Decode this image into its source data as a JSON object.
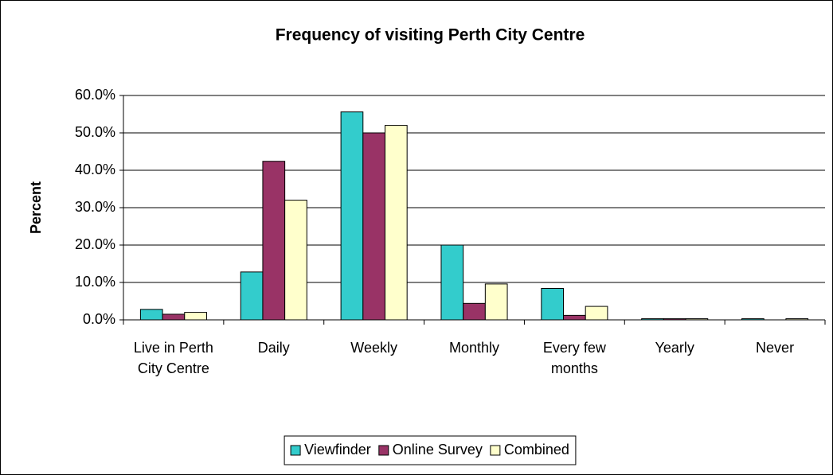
{
  "chart_data": {
    "type": "bar",
    "title": "Frequency of visiting Perth City Centre",
    "y_label": "Percent",
    "categories": [
      "Live in Perth City Centre",
      "Daily",
      "Weekly",
      "Monthly",
      "Every few months",
      "Yearly",
      "Never"
    ],
    "series": [
      {
        "name": "Viewfinder",
        "color": "#33cccc",
        "values": [
          2.8,
          12.8,
          55.6,
          20.0,
          8.4,
          0.3,
          0.3
        ]
      },
      {
        "name": "Online Survey",
        "color": "#993366",
        "values": [
          1.5,
          42.4,
          50.0,
          4.4,
          1.2,
          0.3,
          0.0
        ]
      },
      {
        "name": "Combined",
        "color": "#ffffcc",
        "values": [
          2.0,
          32.0,
          52.0,
          9.6,
          3.6,
          0.3,
          0.3
        ]
      }
    ],
    "ylim": [
      0,
      60
    ],
    "yticks": [
      {
        "value": 0,
        "label": "0.0%"
      },
      {
        "value": 10,
        "label": "10.0%"
      },
      {
        "value": 20,
        "label": "20.0%"
      },
      {
        "value": 30,
        "label": "30.0%"
      },
      {
        "value": 40,
        "label": "40.0%"
      },
      {
        "value": 50,
        "label": "50.0%"
      },
      {
        "value": 60,
        "label": "60.0%"
      }
    ],
    "grid": true,
    "legend": "bottom"
  }
}
